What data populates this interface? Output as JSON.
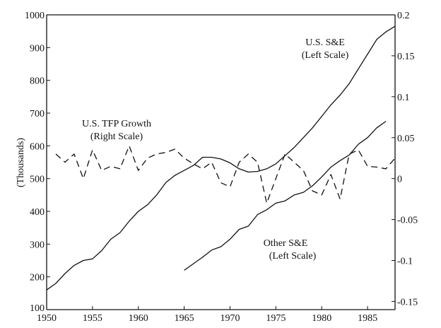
{
  "chart_data": {
    "type": "line",
    "title": "",
    "xlabel": "",
    "ylabel": "(Thousands)",
    "xlim": [
      1950,
      1988
    ],
    "ylim": [
      100,
      1000
    ],
    "y2lim": [
      -0.16,
      0.2
    ],
    "grid": false,
    "x_ticks": [
      "1950",
      "1955",
      "1960",
      "1965",
      "1970",
      "1975",
      "1980",
      "1985"
    ],
    "y_ticks": [
      "100",
      "200",
      "300",
      "400",
      "500",
      "600",
      "700",
      "800",
      "900",
      "1000"
    ],
    "y2_ticks": [
      "-0.15",
      "-0.1",
      "-0.05",
      "0",
      "0.05",
      "0.1",
      "0.15",
      "0.2"
    ],
    "series": [
      {
        "name": "U.S. S&E",
        "axis": "left",
        "style": "solid",
        "label_lines": [
          "U.S. S&E",
          "(Left Scale)"
        ],
        "x": [
          1950,
          1951,
          1952,
          1953,
          1954,
          1955,
          1956,
          1957,
          1958,
          1959,
          1960,
          1961,
          1962,
          1963,
          1964,
          1965,
          1966,
          1967,
          1968,
          1969,
          1970,
          1971,
          1972,
          1973,
          1974,
          1975,
          1976,
          1977,
          1978,
          1979,
          1980,
          1981,
          1982,
          1983,
          1984,
          1985,
          1986,
          1987,
          1988
        ],
        "values": [
          160,
          180,
          210,
          235,
          250,
          255,
          280,
          315,
          335,
          370,
          400,
          420,
          450,
          488,
          510,
          525,
          540,
          565,
          565,
          560,
          548,
          530,
          520,
          522,
          530,
          545,
          570,
          595,
          625,
          655,
          690,
          725,
          755,
          790,
          835,
          880,
          925,
          948,
          965
        ]
      },
      {
        "name": "Other S&E",
        "axis": "left",
        "style": "solid",
        "label_lines": [
          "Other S&E",
          "(Left Scale)"
        ],
        "x": [
          1965,
          1966,
          1967,
          1968,
          1969,
          1970,
          1971,
          1972,
          1973,
          1974,
          1975,
          1976,
          1977,
          1978,
          1979,
          1980,
          1981,
          1982,
          1983,
          1984,
          1985,
          1986,
          1987
        ],
        "values": [
          220,
          240,
          260,
          282,
          292,
          315,
          345,
          355,
          390,
          405,
          425,
          432,
          450,
          458,
          478,
          505,
          535,
          555,
          572,
          605,
          625,
          655,
          675
        ]
      },
      {
        "name": "U.S. TFP Growth",
        "axis": "right",
        "style": "dashed",
        "label_lines": [
          "U.S. TFP Growth",
          "(Right Scale)"
        ],
        "x": [
          1951,
          1952,
          1953,
          1954,
          1955,
          1956,
          1957,
          1958,
          1959,
          1960,
          1961,
          1962,
          1963,
          1964,
          1965,
          1966,
          1967,
          1968,
          1969,
          1970,
          1971,
          1972,
          1973,
          1974,
          1975,
          1976,
          1977,
          1978,
          1979,
          1980,
          1981,
          1982,
          1983,
          1984,
          1985,
          1986,
          1987,
          1988
        ],
        "values": [
          0.03,
          0.02,
          0.03,
          0.0,
          0.035,
          0.01,
          0.015,
          0.012,
          0.04,
          0.01,
          0.025,
          0.03,
          0.032,
          0.036,
          0.025,
          0.018,
          0.012,
          0.02,
          -0.005,
          -0.01,
          0.02,
          0.03,
          0.02,
          -0.03,
          0.0,
          0.03,
          0.02,
          0.01,
          -0.015,
          -0.02,
          0.005,
          -0.025,
          0.03,
          0.035,
          0.015,
          0.014,
          0.012,
          0.025
        ]
      }
    ]
  }
}
